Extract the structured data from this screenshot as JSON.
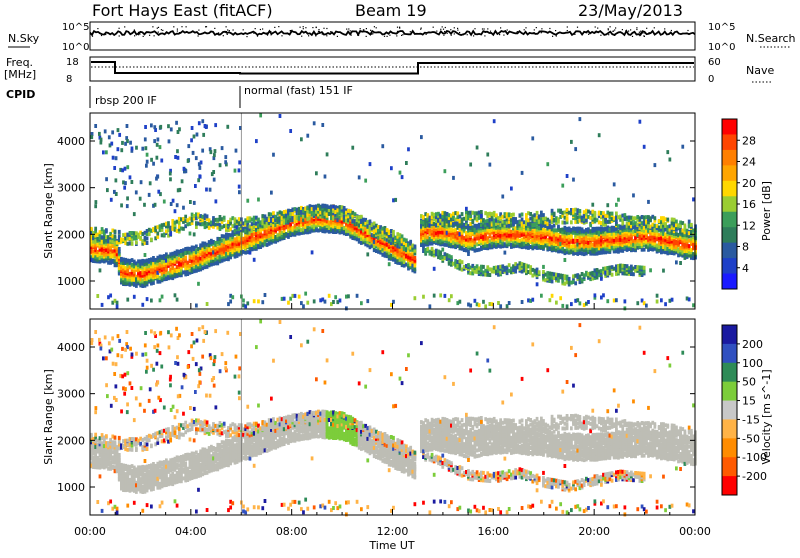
{
  "header": {
    "station": "Fort Hays East (fitACF)",
    "beam": "Beam 19",
    "date": "23/May/2013"
  },
  "top_strip": {
    "left_label": "N.Sky",
    "right_label": "N.Search",
    "left_ticks": [
      "10^5",
      "10^0"
    ],
    "right_ticks": [
      "10^5",
      "10^0"
    ]
  },
  "freq_strip": {
    "left_label_1": "Freq.",
    "left_label_2": "[MHz]",
    "left_ticks": [
      "18",
      "8"
    ],
    "right_label": "Nave",
    "right_ticks": [
      "60",
      "0"
    ]
  },
  "cpid": {
    "label": "CPID",
    "modes": [
      {
        "name": "rbsp 200 IF",
        "start_hour": 0
      },
      {
        "name": "normal (fast) 151 IF",
        "start_hour": 6
      }
    ]
  },
  "colors": {
    "power": [
      "#1a1aff",
      "#1e40c8",
      "#2a5aa0",
      "#2e7d5a",
      "#3b9e5a",
      "#9acd32",
      "#ffd700",
      "#ffa500",
      "#ff7f00",
      "#ff4500",
      "#ff0000"
    ],
    "velocity": [
      "#ff0000",
      "#ff5a00",
      "#ff8c00",
      "#ffb347",
      "#c8c8c8",
      "#7ccd3a",
      "#2e8b57",
      "#3050c0",
      "#1a1aa0"
    ],
    "ground_scatter": "#bdbdb5"
  },
  "chart_data": [
    {
      "type": "heatmap",
      "name": "power",
      "ylabel": "Slant Range [km]",
      "xlabel": "Time UT",
      "colorbar_label": "Power [dB]",
      "colorbar_ticks": [
        "28",
        "24",
        "20",
        "16",
        "12",
        "8",
        "4"
      ],
      "y_ticks": [
        "1000",
        "2000",
        "3000",
        "4000"
      ],
      "ylim": [
        400,
        4600
      ],
      "xlim": [
        0,
        24
      ],
      "x_ticks": [
        "00:00",
        "04:00",
        "08:00",
        "12:00",
        "16:00",
        "20:00",
        "00:00"
      ],
      "band_center_km": [
        [
          0,
          1700
        ],
        [
          1,
          1650
        ],
        [
          1.2,
          1200
        ],
        [
          2,
          1150
        ],
        [
          3,
          1300
        ],
        [
          4,
          1450
        ],
        [
          5,
          1650
        ],
        [
          6,
          1850
        ],
        [
          7,
          2050
        ],
        [
          8,
          2250
        ],
        [
          9,
          2350
        ],
        [
          10,
          2300
        ],
        [
          11,
          2000
        ],
        [
          12,
          1700
        ],
        [
          12.9,
          1450
        ],
        [
          13.1,
          2050
        ],
        [
          14,
          2050
        ],
        [
          15,
          1900
        ],
        [
          16,
          2000
        ],
        [
          17,
          2000
        ],
        [
          18,
          1950
        ],
        [
          19,
          1850
        ],
        [
          20,
          1850
        ],
        [
          21,
          1900
        ],
        [
          22,
          1950
        ],
        [
          23,
          1850
        ],
        [
          24,
          1750
        ]
      ],
      "upper_band_km": [
        [
          0,
          2000
        ],
        [
          2,
          1900
        ],
        [
          4,
          2300
        ],
        [
          6,
          2200
        ],
        [
          8,
          2400
        ],
        [
          9,
          2500
        ],
        [
          10,
          2450
        ],
        [
          11,
          2150
        ],
        [
          12.9,
          1700
        ],
        [
          13.1,
          2300
        ],
        [
          15,
          2350
        ],
        [
          17,
          2300
        ],
        [
          19,
          2400
        ],
        [
          21,
          2300
        ],
        [
          23,
          2200
        ],
        [
          24,
          2050
        ]
      ],
      "lower_band_km": [
        [
          13.1,
          1700
        ],
        [
          14,
          1500
        ],
        [
          15,
          1250
        ],
        [
          16,
          1200
        ],
        [
          17,
          1300
        ],
        [
          18,
          1100
        ],
        [
          19,
          1000
        ],
        [
          20,
          1150
        ],
        [
          21,
          1250
        ],
        [
          22,
          1200
        ]
      ]
    },
    {
      "type": "heatmap",
      "name": "velocity",
      "ylabel": "Slant Range [km]",
      "xlabel": "Time UT",
      "colorbar_label": "Velocity [m s^-1]",
      "colorbar_ticks": [
        "200",
        "100",
        "50",
        "15",
        "-15",
        "-50",
        "-100",
        "-200"
      ],
      "y_ticks": [
        "1000",
        "2000",
        "3000",
        "4000"
      ],
      "ylim": [
        400,
        4600
      ],
      "xlim": [
        0,
        24
      ],
      "x_ticks": [
        "00:00",
        "04:00",
        "08:00",
        "12:00",
        "16:00",
        "20:00",
        "00:00"
      ]
    }
  ]
}
